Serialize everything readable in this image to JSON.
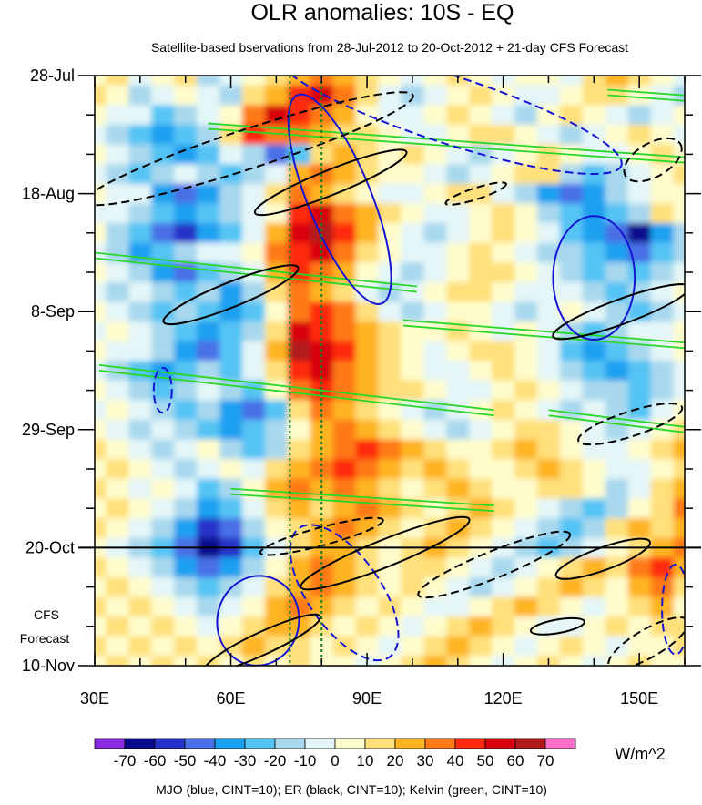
{
  "chart_data": {
    "type": "heatmap",
    "title": "OLR anomalies: 10S - EQ",
    "subtitle": "Satellite-based bservations from 28-Jul-2012 to 20-Oct-2012 + 21-day CFS Forecast",
    "xlabel": "",
    "ylabel": "",
    "x_range": [
      30,
      160
    ],
    "y_range_days": [
      0,
      105
    ],
    "x_ticks": [
      {
        "value": 30,
        "label": "30E"
      },
      {
        "value": 60,
        "label": "60E"
      },
      {
        "value": 90,
        "label": "90E"
      },
      {
        "value": 120,
        "label": "120E"
      },
      {
        "value": 150,
        "label": "150E"
      }
    ],
    "y_ticks": [
      {
        "day": 0,
        "label": "28-Jul"
      },
      {
        "day": 21,
        "label": "18-Aug"
      },
      {
        "day": 42,
        "label": "8-Sep"
      },
      {
        "day": 63,
        "label": "29-Sep"
      },
      {
        "day": 84,
        "label": "20-Oct"
      },
      {
        "day": 105,
        "label": "10-Nov"
      }
    ],
    "forecast_start_day": 84,
    "forecast_label": [
      "CFS",
      "Forecast"
    ],
    "reference_lines_lon": [
      73,
      80
    ],
    "colorbar": {
      "unit": "W/m^2",
      "levels": [
        -70,
        -60,
        -50,
        -40,
        -30,
        -20,
        -10,
        0,
        10,
        20,
        30,
        40,
        50,
        60,
        70
      ],
      "colors": [
        "#8a2be2",
        "#0a0a8c",
        "#2532c8",
        "#4a6fe6",
        "#1aa0f0",
        "#55c4f4",
        "#a8d8ee",
        "#e4f6f8",
        "#fffccc",
        "#ffe07a",
        "#ffb424",
        "#ff7a18",
        "#ff2a10",
        "#d8000e",
        "#b01a1a",
        "#ff6ec8"
      ]
    },
    "anomaly_grid": {
      "lon_start": 30,
      "lon_step": 5,
      "day_start": 0,
      "day_step": 3.5,
      "values": [
        [
          0,
          10,
          -10,
          0,
          10,
          -20,
          -10,
          0,
          10,
          20,
          30,
          20,
          10,
          0,
          -10,
          0,
          10,
          0,
          -10,
          0,
          0,
          -10,
          10,
          20,
          10,
          0,
          -10
        ],
        [
          10,
          0,
          -20,
          -10,
          0,
          -10,
          -20,
          10,
          20,
          40,
          50,
          30,
          10,
          -10,
          -20,
          -10,
          0,
          10,
          0,
          -10,
          -10,
          0,
          10,
          10,
          0,
          -10,
          -20
        ],
        [
          0,
          -10,
          -10,
          -30,
          -20,
          -10,
          0,
          30,
          50,
          40,
          30,
          20,
          0,
          -10,
          -10,
          0,
          10,
          0,
          -10,
          -20,
          0,
          10,
          0,
          -10,
          -20,
          -10,
          0
        ],
        [
          -10,
          -20,
          -30,
          -40,
          -30,
          -20,
          10,
          40,
          30,
          30,
          20,
          10,
          10,
          0,
          -10,
          -10,
          0,
          10,
          10,
          0,
          -10,
          -20,
          -10,
          0,
          10,
          0,
          -10
        ],
        [
          0,
          -10,
          -20,
          -30,
          -40,
          -30,
          -10,
          -20,
          -50,
          -30,
          10,
          20,
          10,
          0,
          10,
          0,
          -10,
          -20,
          -10,
          0,
          10,
          0,
          -10,
          -10,
          0,
          10,
          0
        ],
        [
          -10,
          -20,
          -30,
          -20,
          -10,
          -20,
          -30,
          -20,
          -10,
          20,
          30,
          20,
          10,
          0,
          0,
          -10,
          -20,
          -10,
          0,
          10,
          10,
          -20,
          -30,
          -20,
          -10,
          0,
          10
        ],
        [
          0,
          -10,
          -10,
          -40,
          -50,
          -40,
          -20,
          -10,
          10,
          30,
          20,
          10,
          0,
          -10,
          -10,
          0,
          10,
          10,
          -10,
          -20,
          -40,
          -50,
          -40,
          -20,
          -10,
          0,
          0
        ],
        [
          -10,
          -10,
          -20,
          -30,
          -40,
          -30,
          -20,
          -10,
          0,
          40,
          50,
          30,
          20,
          10,
          0,
          -10,
          -10,
          0,
          10,
          0,
          -20,
          -30,
          -40,
          -30,
          -20,
          10,
          0
        ],
        [
          0,
          -20,
          -30,
          -50,
          -60,
          -40,
          -30,
          -10,
          20,
          50,
          60,
          40,
          20,
          0,
          -10,
          -20,
          -10,
          0,
          10,
          0,
          -10,
          -30,
          -40,
          -50,
          -70,
          -40,
          -20
        ],
        [
          -10,
          -20,
          -40,
          -30,
          -20,
          -10,
          -10,
          0,
          30,
          40,
          50,
          30,
          10,
          0,
          -10,
          -10,
          0,
          10,
          0,
          -10,
          -20,
          -20,
          -30,
          -40,
          -50,
          -30,
          -20
        ],
        [
          0,
          -10,
          -20,
          -40,
          -50,
          -30,
          -20,
          -10,
          20,
          40,
          30,
          20,
          0,
          -10,
          -20,
          -10,
          0,
          10,
          10,
          0,
          -10,
          -20,
          -30,
          -20,
          -30,
          -20,
          -10
        ],
        [
          -10,
          -20,
          -10,
          -20,
          -30,
          -20,
          -40,
          -20,
          10,
          30,
          20,
          10,
          -10,
          -20,
          -10,
          0,
          10,
          10,
          0,
          -10,
          -10,
          -10,
          -20,
          -30,
          -20,
          -10,
          0
        ],
        [
          0,
          -10,
          -20,
          -30,
          -20,
          -30,
          -40,
          -30,
          0,
          30,
          40,
          30,
          10,
          -10,
          -20,
          -10,
          0,
          0,
          -10,
          -20,
          -10,
          0,
          -10,
          -20,
          -30,
          -20,
          -10
        ],
        [
          -10,
          0,
          -10,
          -20,
          -30,
          -40,
          -30,
          -20,
          10,
          50,
          40,
          30,
          20,
          10,
          0,
          0,
          10,
          0,
          -10,
          0,
          -10,
          -20,
          -30,
          -20,
          -10,
          -10,
          0
        ],
        [
          0,
          -10,
          -10,
          -20,
          -40,
          -50,
          -30,
          -10,
          20,
          60,
          50,
          40,
          20,
          10,
          0,
          -10,
          0,
          10,
          10,
          0,
          -10,
          -30,
          -40,
          -30,
          -20,
          -10,
          0
        ],
        [
          -10,
          -20,
          -30,
          -40,
          -30,
          -20,
          -30,
          -10,
          10,
          40,
          50,
          30,
          20,
          10,
          0,
          -10,
          -10,
          0,
          10,
          0,
          -10,
          -20,
          -30,
          -40,
          -30,
          -20,
          -10
        ],
        [
          0,
          -10,
          -20,
          -30,
          -20,
          -10,
          -20,
          -30,
          0,
          30,
          40,
          30,
          20,
          10,
          10,
          0,
          -10,
          -10,
          0,
          10,
          0,
          -10,
          -20,
          -20,
          -30,
          -20,
          -10
        ],
        [
          -10,
          0,
          -10,
          -20,
          -30,
          -20,
          -40,
          -50,
          -30,
          10,
          30,
          20,
          10,
          0,
          -10,
          -20,
          -10,
          0,
          10,
          0,
          -10,
          -20,
          -10,
          -20,
          -30,
          -10,
          0
        ],
        [
          0,
          -10,
          -20,
          -10,
          -20,
          -30,
          -40,
          -30,
          -20,
          0,
          20,
          30,
          20,
          10,
          0,
          -10,
          -20,
          -10,
          0,
          10,
          10,
          0,
          -10,
          -20,
          -10,
          0,
          10
        ],
        [
          10,
          0,
          -10,
          -20,
          -10,
          0,
          -20,
          -30,
          -20,
          10,
          20,
          30,
          40,
          30,
          20,
          10,
          0,
          0,
          10,
          20,
          10,
          0,
          -10,
          -10,
          0,
          10,
          20
        ],
        [
          0,
          10,
          0,
          -10,
          -20,
          -10,
          0,
          -10,
          10,
          20,
          30,
          40,
          30,
          20,
          10,
          20,
          10,
          0,
          0,
          10,
          20,
          10,
          0,
          -10,
          -10,
          0,
          10
        ],
        [
          10,
          0,
          -10,
          0,
          -10,
          -30,
          -20,
          0,
          20,
          30,
          20,
          30,
          20,
          10,
          0,
          10,
          20,
          10,
          0,
          0,
          10,
          10,
          0,
          -20,
          -10,
          10,
          20
        ],
        [
          0,
          10,
          0,
          -10,
          -20,
          -40,
          -30,
          -10,
          10,
          20,
          10,
          20,
          30,
          20,
          10,
          0,
          10,
          20,
          10,
          0,
          -10,
          -20,
          -30,
          -20,
          0,
          10,
          30
        ],
        [
          10,
          0,
          -10,
          -20,
          -40,
          -60,
          -50,
          -20,
          0,
          10,
          20,
          30,
          20,
          10,
          0,
          10,
          20,
          10,
          0,
          -10,
          -20,
          -30,
          -20,
          10,
          20,
          10,
          20
        ],
        [
          0,
          -10,
          -20,
          -30,
          -50,
          -70,
          -60,
          -30,
          -10,
          10,
          20,
          20,
          10,
          0,
          10,
          20,
          10,
          0,
          -10,
          -20,
          -30,
          -20,
          -10,
          0,
          10,
          20,
          30
        ],
        [
          10,
          0,
          -10,
          -20,
          -40,
          -50,
          -40,
          -20,
          0,
          20,
          30,
          20,
          10,
          0,
          10,
          10,
          0,
          -10,
          -20,
          -10,
          0,
          10,
          20,
          10,
          30,
          40,
          20
        ],
        [
          0,
          10,
          0,
          -10,
          -20,
          -30,
          -20,
          -10,
          10,
          20,
          30,
          20,
          10,
          0,
          10,
          0,
          -10,
          -20,
          -10,
          0,
          10,
          20,
          10,
          0,
          20,
          30,
          10
        ],
        [
          10,
          0,
          10,
          0,
          -10,
          -20,
          -10,
          0,
          20,
          30,
          20,
          10,
          0,
          10,
          0,
          -10,
          -10,
          0,
          10,
          20,
          10,
          0,
          -10,
          0,
          10,
          20,
          0
        ],
        [
          0,
          10,
          0,
          10,
          0,
          -10,
          0,
          10,
          20,
          20,
          10,
          0,
          10,
          0,
          -10,
          0,
          10,
          20,
          10,
          0,
          -10,
          -10,
          0,
          10,
          0,
          10,
          10
        ],
        [
          10,
          0,
          10,
          0,
          10,
          0,
          10,
          20,
          10,
          10,
          0,
          10,
          0,
          -10,
          0,
          10,
          20,
          10,
          0,
          -10,
          0,
          10,
          0,
          -10,
          0,
          0,
          10
        ],
        [
          0,
          10,
          0,
          10,
          0,
          10,
          0,
          10,
          0,
          10,
          0,
          0,
          -10,
          0,
          10,
          20,
          10,
          0,
          -10,
          0,
          10,
          0,
          -10,
          0,
          10,
          0,
          0
        ]
      ]
    },
    "contours": [
      {
        "name": "mjo-contour",
        "mode": "MJO",
        "style": "solid",
        "lon": 84,
        "day": 22,
        "rlon": 7,
        "rday": 20,
        "tilt": -22
      },
      {
        "name": "mjo-contour",
        "mode": "MJO",
        "style": "solid",
        "lon": 140,
        "day": 36,
        "rlon": 9,
        "rday": 11,
        "tilt": 0
      },
      {
        "name": "mjo-contour",
        "mode": "MJO",
        "style": "solid",
        "lon": 66,
        "day": 97,
        "rlon": 9,
        "rday": 8,
        "tilt": 10
      },
      {
        "name": "mjo-contour",
        "mode": "MJO",
        "style": "dashed",
        "lon": 108,
        "day": 6,
        "rlon": 40,
        "rday": 6,
        "tilt": 18
      },
      {
        "name": "mjo-contour",
        "mode": "MJO",
        "style": "dashed",
        "lon": 45,
        "day": 56,
        "rlon": 2,
        "rday": 4,
        "tilt": 0
      },
      {
        "name": "mjo-contour",
        "mode": "MJO",
        "style": "dashed",
        "lon": 85,
        "day": 92,
        "rlon": 8,
        "rday": 14,
        "tilt": -35
      },
      {
        "name": "mjo-contour",
        "mode": "MJO",
        "style": "dashed",
        "lon": 158,
        "day": 95,
        "rlon": 3,
        "rday": 8,
        "tilt": 0
      },
      {
        "name": "er-contour",
        "mode": "ER",
        "style": "solid",
        "lon": 82,
        "day": 19,
        "rlon": 18,
        "rday": 2.2,
        "tilt": -22
      },
      {
        "name": "er-contour",
        "mode": "ER",
        "style": "solid",
        "lon": 60,
        "day": 39,
        "rlon": 16,
        "rday": 2.2,
        "tilt": -22
      },
      {
        "name": "er-contour",
        "mode": "ER",
        "style": "solid",
        "lon": 146,
        "day": 42,
        "rlon": 16,
        "rday": 2.2,
        "tilt": -20
      },
      {
        "name": "er-contour",
        "mode": "ER",
        "style": "solid",
        "lon": 94,
        "day": 85,
        "rlon": 20,
        "rday": 2.4,
        "tilt": -22
      },
      {
        "name": "er-contour",
        "mode": "ER",
        "style": "solid",
        "lon": 142,
        "day": 86,
        "rlon": 11,
        "rday": 2,
        "tilt": -20
      },
      {
        "name": "er-contour",
        "mode": "ER",
        "style": "solid",
        "lon": 132,
        "day": 98,
        "rlon": 6,
        "rday": 1.2,
        "tilt": -10
      },
      {
        "name": "er-contour",
        "mode": "ER",
        "style": "solid",
        "lon": 67,
        "day": 101,
        "rlon": 14,
        "rday": 2,
        "tilt": -25
      },
      {
        "name": "er-contour",
        "mode": "ER",
        "style": "dashed",
        "lon": 64,
        "day": 13,
        "rlon": 38,
        "rday": 3.5,
        "tilt": -18
      },
      {
        "name": "er-contour",
        "mode": "ER",
        "style": "dashed",
        "lon": 114,
        "day": 21,
        "rlon": 7,
        "rday": 1,
        "tilt": -18
      },
      {
        "name": "er-contour",
        "mode": "ER",
        "style": "dashed",
        "lon": 153,
        "day": 15,
        "rlon": 7,
        "rday": 3,
        "tilt": -30
      },
      {
        "name": "er-contour",
        "mode": "ER",
        "style": "dashed",
        "lon": 148,
        "day": 62,
        "rlon": 12,
        "rday": 2.2,
        "tilt": -18
      },
      {
        "name": "er-contour",
        "mode": "ER",
        "style": "dashed",
        "lon": 80,
        "day": 82,
        "rlon": 14,
        "rday": 1.6,
        "tilt": -15
      },
      {
        "name": "er-contour",
        "mode": "ER",
        "style": "dashed",
        "lon": 118,
        "day": 87,
        "rlon": 18,
        "rday": 2.4,
        "tilt": -22
      },
      {
        "name": "er-contour",
        "mode": "ER",
        "style": "dashed",
        "lon": 152,
        "day": 101,
        "rlon": 10,
        "rday": 2.5,
        "tilt": -30
      }
    ],
    "kelvin_bands": [
      {
        "lon0": 55,
        "day0": 9,
        "lon1": 160,
        "day1": 15
      },
      {
        "lon0": 30,
        "day0": 32,
        "lon1": 101,
        "day1": 38
      },
      {
        "lon0": 31,
        "day0": 52,
        "lon1": 118,
        "day1": 60
      },
      {
        "lon0": 60,
        "day0": 74,
        "lon1": 118,
        "day1": 77
      },
      {
        "lon0": 130,
        "day0": 60,
        "lon1": 160,
        "day1": 63
      },
      {
        "lon0": 143,
        "day0": 3,
        "lon1": 160,
        "day1": 4
      },
      {
        "lon0": 98,
        "day0": 44,
        "lon1": 160,
        "day1": 48
      }
    ],
    "footer_caption": "MJO (blue, CINT=10); ER (black, CINT=10); Kelvin (green, CINT=10)"
  }
}
